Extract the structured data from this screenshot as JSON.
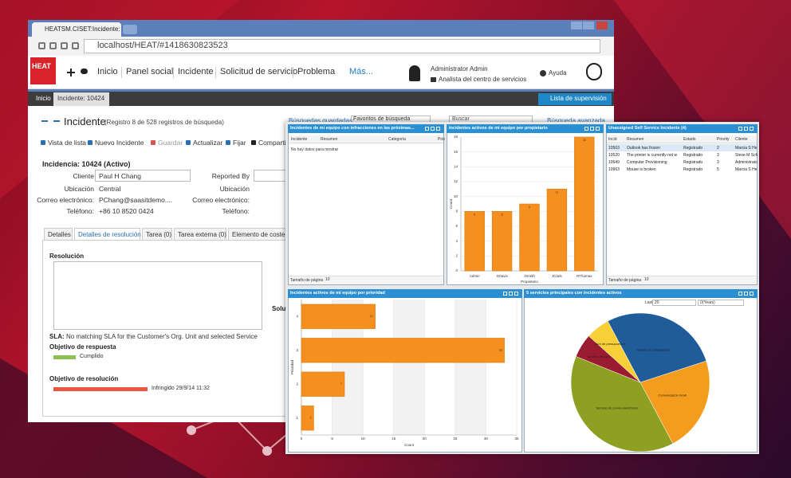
{
  "browser": {
    "tab_title": "HEATSM.CISET:Incidente: 1(",
    "url": "localhost/HEAT/#1418630823523"
  },
  "nav": {
    "logo": "HEAT",
    "items": [
      "Inicio",
      "Panel social",
      "Incidente",
      "Solicitud de servicio",
      "Problema",
      "Más..."
    ],
    "user_name": "Administrator Admin",
    "user_role": "Analista del centro de servicios",
    "help": "Ayuda"
  },
  "breadcrumb": {
    "items": [
      "Inicio",
      "Incidente: 10424"
    ],
    "watch_list": "Lista de supervisión"
  },
  "record": {
    "title": "Incidente",
    "subtitle": "(Registro 8 de 528 registros de búsqueda)",
    "saved_searches": "Búsquedas guardadas:",
    "saved_value": "Favoritos de búsqueda",
    "search": "Buscar",
    "advanced": "Búsqueda avanzada"
  },
  "toolbar": [
    "Vista de lista",
    "Nuevo Incidente",
    "Guardar",
    "Actualizar",
    "Fijar",
    "Compartir"
  ],
  "form": {
    "heading": "Incidencia: 10424 (Activo)",
    "fields": [
      {
        "label": "Cliente",
        "value": "Paul H Chang"
      },
      {
        "label": "Ubicación",
        "value": "Central"
      },
      {
        "label": "Correo electrónico:",
        "value": "PChang@saasitdemo...."
      },
      {
        "label": "Teléfono:",
        "value": "+86 10 8520 0424"
      }
    ],
    "right_fields": [
      "Reported By",
      "Ubicación",
      "Correo electrónico:",
      "Teléfono:"
    ]
  },
  "tabs": [
    "Detalles",
    "Detalles de resolución",
    "Tarea (0)",
    "Tarea externa (0)",
    "Elemento de coste (0)"
  ],
  "resolution": {
    "label": "Resolución",
    "side_label": "Soluci",
    "sla_label": "SLA:",
    "sla_text": "No matching SLA for the Customer's Org. Unit and selected Service",
    "response_target": "Objetivo de respuesta",
    "response_status": "Cumplido",
    "resolution_target": "Objetivo de resolución",
    "resolution_status": "Infringido 29/9/14 11:32"
  },
  "dashboard": {
    "breaches": {
      "title": "Incidentes de mi equipo con infracciones en las próximas...",
      "columns": [
        "Incidente",
        "Resumen",
        "Categoría",
        "Prio"
      ],
      "empty": "No hay datos para mostrar",
      "footer": "Tamaño de página",
      "page_size": "10"
    },
    "unassigned": {
      "title": "Unassigned Self Service Incidents (4)",
      "columns": [
        "Incid",
        "Resumen",
        "Estado",
        "Priority",
        "Cliente"
      ],
      "rows": [
        [
          "10503",
          "Outlook has frozen",
          "Registrado",
          "2",
          "Marcia S He"
        ],
        [
          "10520",
          "The printer is currently not w",
          "Registrado",
          "3",
          "Steve M Sch"
        ],
        [
          "10649",
          "Computer Provisioning",
          "Registrado",
          "3",
          "Administrato"
        ],
        [
          "10963",
          "Mouse is broken",
          "Registrado",
          "5",
          "Marcia S He"
        ]
      ],
      "footer": "Tamaño de página",
      "page_size": "10"
    }
  },
  "chart_data": [
    {
      "type": "bar",
      "title": "Incidentes activos de mi equipo por propietario",
      "categories": [
        "Admin",
        "SDavis",
        "JSmith",
        "JClark",
        "RThomas"
      ],
      "values": [
        8,
        8,
        9,
        11,
        18
      ],
      "color": "#f5901e",
      "ylim": [
        0,
        18
      ],
      "yticks": [
        0,
        2,
        4,
        6,
        8,
        10,
        12,
        14,
        16,
        18
      ],
      "x_label": "Propietario",
      "y_label": "Count",
      "grid": true
    },
    {
      "type": "hbar",
      "title": "Incidentes activos de mi equipo por prioridad",
      "categories": [
        "1",
        "2",
        "3",
        "4"
      ],
      "values": [
        2,
        7,
        33,
        12
      ],
      "color": "#f5901e",
      "xlim": [
        0,
        35
      ],
      "xticks": [
        0,
        5,
        10,
        15,
        20,
        25,
        30,
        35
      ],
      "x_label": "Count",
      "y_label": "Prioridad",
      "grid": true
    },
    {
      "type": "pie",
      "title": "5 servicios principales con incidentes activos",
      "filter_label": "Last",
      "filter_value": "20",
      "filter_unit": "0(Years)",
      "categories": [
        "Gestión de trabajadores",
        "Comunicación móvil",
        "Servicio de correo electrónico",
        "Gestión del serv",
        "ción de presupuestos"
      ],
      "values": [
        10,
        8,
        14,
        2,
        2
      ],
      "colors": [
        "#1f5c99",
        "#f39c1e",
        "#8ea022",
        "#9b1b30",
        "#f7d038"
      ]
    }
  ]
}
